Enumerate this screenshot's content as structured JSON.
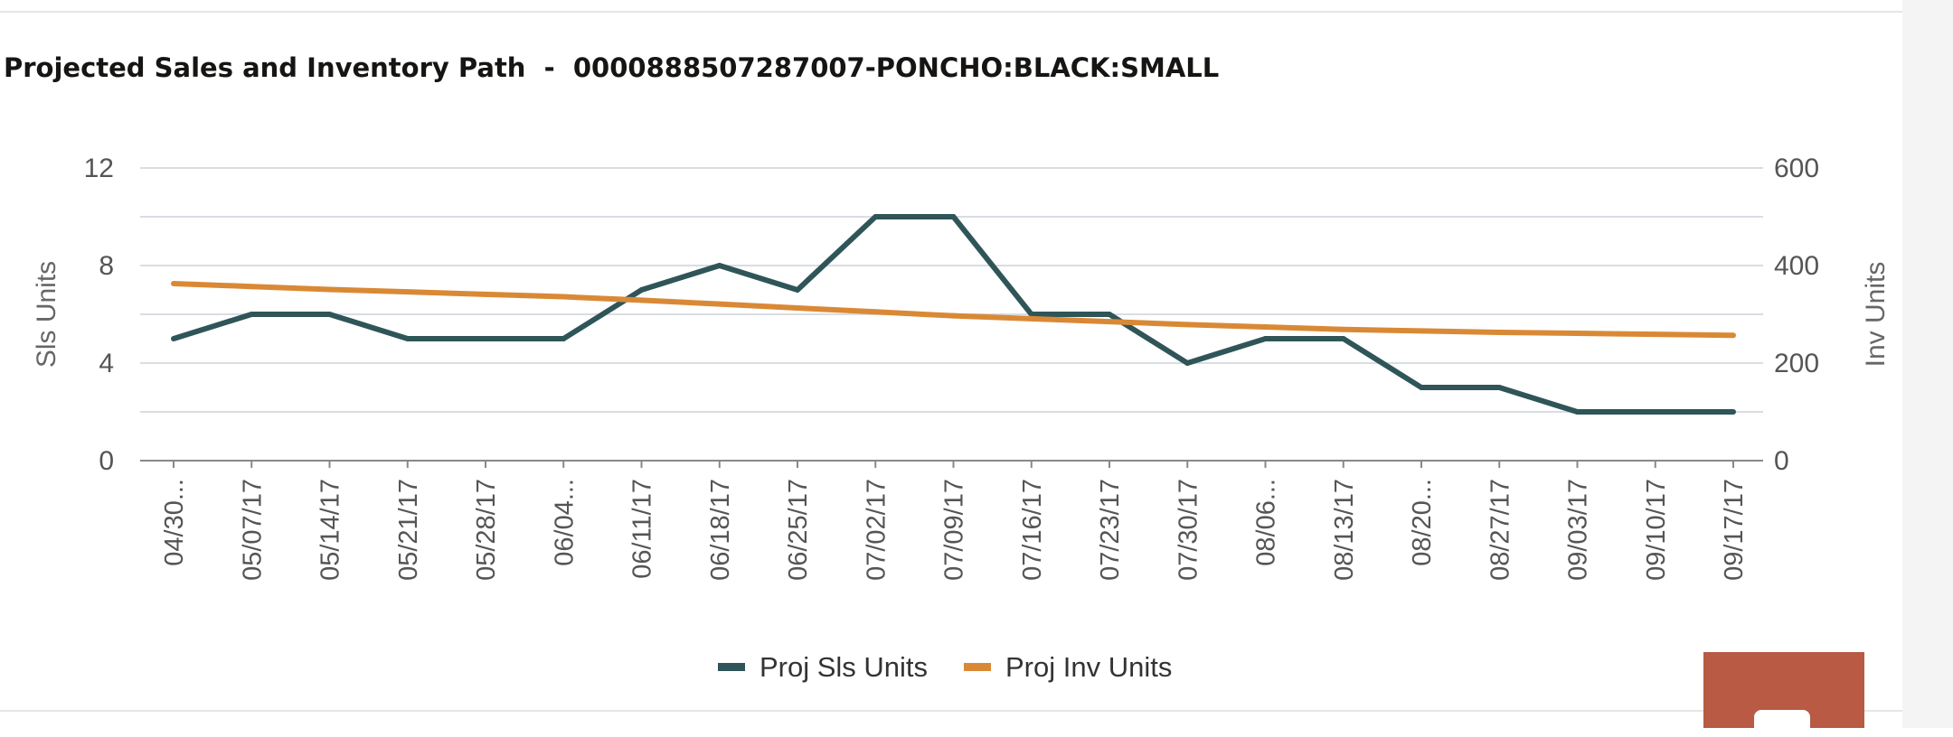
{
  "chart_data": {
    "type": "line",
    "title": "Projected Sales and Inventory Path  -  0000888507287007-PONCHO:BLACK:SMALL",
    "categories": [
      "04/30...",
      "05/07/17",
      "05/14/17",
      "05/21/17",
      "05/28/17",
      "06/04...",
      "06/11/17",
      "06/18/17",
      "06/25/17",
      "07/02/17",
      "07/09/17",
      "07/16/17",
      "07/23/17",
      "07/30/17",
      "08/06...",
      "08/13/17",
      "08/20...",
      "08/27/17",
      "09/03/17",
      "09/10/17",
      "09/17/17"
    ],
    "y_left": {
      "label": "Sls Units",
      "range": [
        0,
        12
      ],
      "ticks": [
        "0",
        "4",
        "8",
        "12"
      ]
    },
    "y_right": {
      "label": "Inv Units",
      "range": [
        0,
        600
      ],
      "ticks": [
        "0",
        "200",
        "400",
        "600"
      ]
    },
    "grid": true,
    "legend_position": "bottom",
    "series": [
      {
        "name": "Proj Sls Units",
        "axis": "left",
        "color": "#2f5558",
        "values": [
          5,
          6,
          6,
          5,
          5,
          5,
          7,
          8,
          7,
          10,
          10,
          6,
          6,
          4,
          5,
          5,
          3,
          3,
          2,
          2,
          2
        ]
      },
      {
        "name": "Proj Inv Units",
        "axis": "right",
        "color": "#d98935",
        "values": [
          363,
          357,
          351,
          346,
          341,
          336,
          329,
          321,
          313,
          305,
          297,
          291,
          285,
          279,
          274,
          269,
          266,
          263,
          261,
          259,
          257
        ]
      }
    ]
  },
  "colors": {
    "grid": "#d9dde3",
    "axis": "#888888",
    "action_button": "#b85a44"
  },
  "icons": {
    "action": "ellipsis-icon"
  }
}
